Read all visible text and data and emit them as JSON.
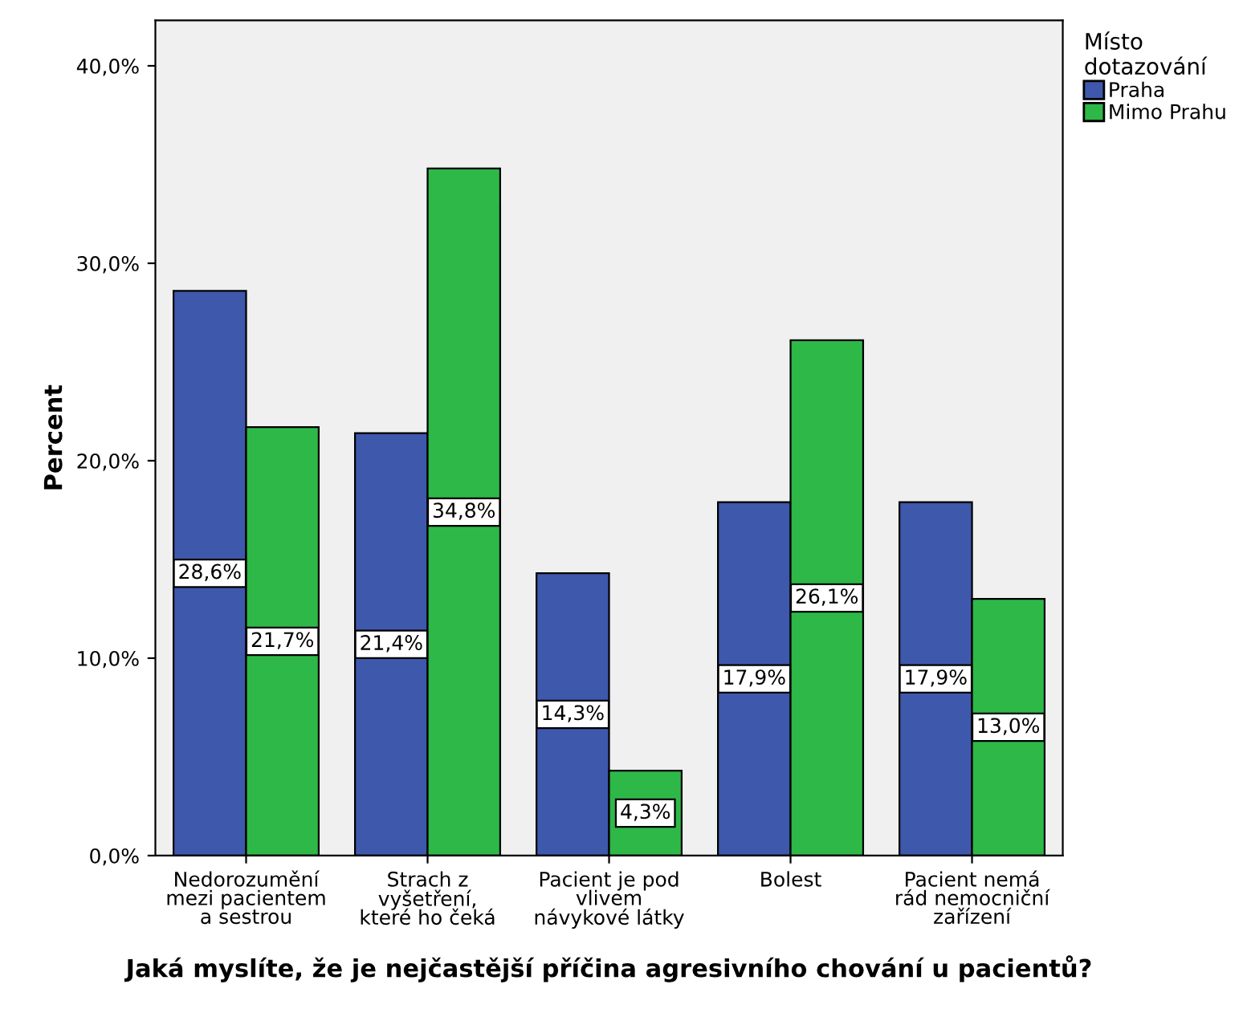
{
  "chart_data": {
    "type": "bar",
    "xlabel": "Jaká myslíte, že je nejčastější příčina agresivního chování u pacientů?",
    "ylabel": "Percent",
    "legend_title": "Místo\ndotazování",
    "categories": [
      "Nedorozumění\nmezi pacientem\na sestrou",
      "Strach z\nvyšetření,\nkteré ho čeká",
      "Pacient je pod\nvlivem\nnávykové látky",
      "Bolest",
      "Pacient nemá\nrád nemocniční\nzařízení"
    ],
    "series": [
      {
        "name": "Praha",
        "color": "#3e58ac",
        "values": [
          28.6,
          21.4,
          14.3,
          17.9,
          17.9
        ],
        "value_labels": [
          "28,6%",
          "21,4%",
          "14,3%",
          "17,9%",
          "17,9%"
        ]
      },
      {
        "name": "Mimo Prahu",
        "color": "#2eb848",
        "values": [
          21.7,
          34.8,
          4.3,
          26.1,
          13.0
        ],
        "value_labels": [
          "21,7%",
          "34,8%",
          "4,3%",
          "26,1%",
          "13,0%"
        ]
      }
    ],
    "ylim": [
      0,
      42.3
    ],
    "yticks": [
      {
        "value": 0,
        "label": "0,0%"
      },
      {
        "value": 10,
        "label": "10,0%"
      },
      {
        "value": 20,
        "label": "20,0%"
      },
      {
        "value": 30,
        "label": "30,0%"
      },
      {
        "value": 40,
        "label": "40,0%"
      }
    ],
    "grid": false,
    "legend": "right"
  }
}
